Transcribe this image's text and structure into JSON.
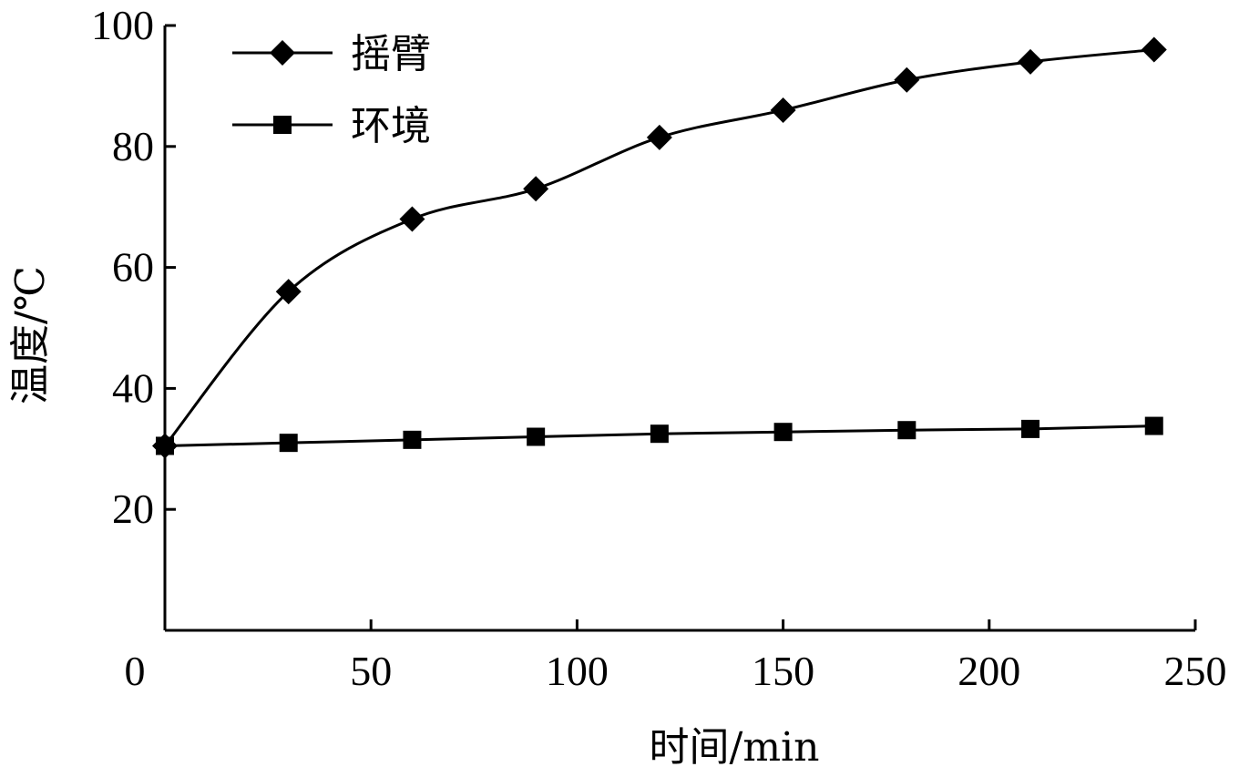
{
  "chart_data": {
    "type": "line",
    "xlabel": "时间/min",
    "ylabel": "温度/℃",
    "xlim": [
      0,
      250
    ],
    "ylim": [
      0,
      100
    ],
    "x_ticks": [
      0,
      50,
      100,
      150,
      200,
      250
    ],
    "y_ticks": [
      20,
      40,
      60,
      80,
      100
    ],
    "x": [
      0,
      30,
      60,
      90,
      120,
      150,
      180,
      210,
      240
    ],
    "series": [
      {
        "name": "摇臂",
        "marker": "diamond",
        "smooth": true,
        "values": [
          30.5,
          56,
          68,
          73,
          81.5,
          86,
          91,
          94,
          96
        ]
      },
      {
        "name": "环境",
        "marker": "square",
        "smooth": false,
        "values": [
          30.5,
          31,
          31.5,
          32,
          32.5,
          32.8,
          33.1,
          33.3,
          33.8
        ]
      }
    ],
    "legend_position": "top-left",
    "grid": false
  }
}
